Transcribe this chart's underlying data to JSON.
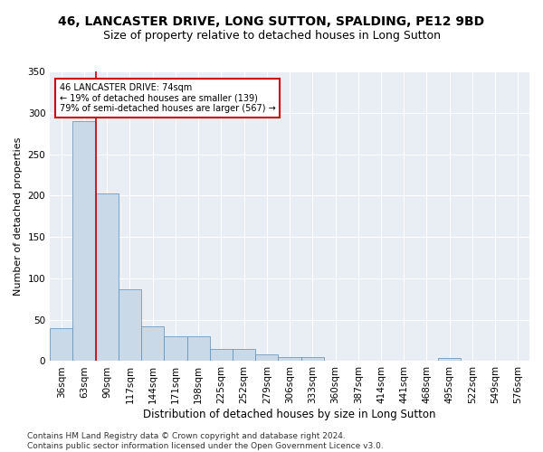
{
  "title": "46, LANCASTER DRIVE, LONG SUTTON, SPALDING, PE12 9BD",
  "subtitle": "Size of property relative to detached houses in Long Sutton",
  "xlabel": "Distribution of detached houses by size in Long Sutton",
  "ylabel": "Number of detached properties",
  "bar_values": [
    40,
    290,
    203,
    87,
    42,
    30,
    30,
    15,
    15,
    8,
    5,
    5,
    0,
    0,
    0,
    0,
    0,
    4,
    0,
    0,
    0
  ],
  "bin_labels": [
    "36sqm",
    "63sqm",
    "90sqm",
    "117sqm",
    "144sqm",
    "171sqm",
    "198sqm",
    "225sqm",
    "252sqm",
    "279sqm",
    "306sqm",
    "333sqm",
    "360sqm",
    "387sqm",
    "414sqm",
    "441sqm",
    "468sqm",
    "495sqm",
    "522sqm",
    "549sqm",
    "576sqm"
  ],
  "bar_color": "#c9d9e8",
  "bar_edge_color": "#5b8db8",
  "highlight_line_color": "#cc0000",
  "annotation_text": "46 LANCASTER DRIVE: 74sqm\n← 19% of detached houses are smaller (139)\n79% of semi-detached houses are larger (567) →",
  "annotation_box_color": "#ffffff",
  "annotation_box_edge_color": "#cc0000",
  "footnote": "Contains HM Land Registry data © Crown copyright and database right 2024.\nContains public sector information licensed under the Open Government Licence v3.0.",
  "ylim": [
    0,
    350
  ],
  "background_color": "#e8eef4",
  "grid_color": "#ffffff",
  "fig_background": "#ffffff",
  "title_fontsize": 10,
  "subtitle_fontsize": 9,
  "xlabel_fontsize": 8.5,
  "ylabel_fontsize": 8,
  "tick_fontsize": 7.5,
  "footnote_fontsize": 6.5
}
